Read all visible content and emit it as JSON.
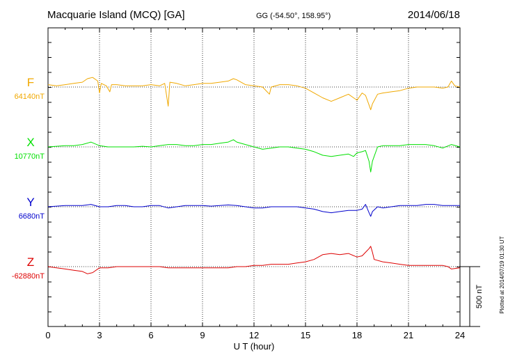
{
  "header": {
    "station": "Macquarie Island (MCQ)  [GA]",
    "coords": "GG (-54.50°, 158.95°)",
    "date": "2014/06/18"
  },
  "footer": {
    "plotted": "Plotted at 2014/07/19 01:30 UT"
  },
  "colors": {
    "F": "#f0a800",
    "X": "#00e000",
    "Y": "#0000cc",
    "Z": "#dd0000"
  },
  "chart_data": {
    "type": "line",
    "title": "Macquarie Island (MCQ)  [GA]",
    "xlabel": "U T (hour)",
    "ylabel": "",
    "xlim": [
      0,
      24
    ],
    "x_ticks": [
      "0",
      "3",
      "6",
      "9",
      "12",
      "15",
      "18",
      "21",
      "24"
    ],
    "grid": true,
    "scale_bar": {
      "label": "500 nT",
      "value_nT": 500
    },
    "series": [
      {
        "name": "F",
        "baseline_label": "64140nT",
        "baseline_nT": 64140,
        "points": [
          [
            0,
            64160
          ],
          [
            0.5,
            64150
          ],
          [
            1,
            64160
          ],
          [
            1.5,
            64170
          ],
          [
            2,
            64180
          ],
          [
            2.3,
            64210
          ],
          [
            2.6,
            64220
          ],
          [
            2.9,
            64190
          ],
          [
            3,
            64090
          ],
          [
            3.1,
            64170
          ],
          [
            3.4,
            64150
          ],
          [
            3.6,
            64100
          ],
          [
            3.7,
            64160
          ],
          [
            4,
            64160
          ],
          [
            4.5,
            64150
          ],
          [
            5,
            64150
          ],
          [
            5.5,
            64150
          ],
          [
            6,
            64160
          ],
          [
            6.5,
            64150
          ],
          [
            6.8,
            64170
          ],
          [
            7,
            63980
          ],
          [
            7.1,
            64180
          ],
          [
            7.5,
            64170
          ],
          [
            8,
            64150
          ],
          [
            8.5,
            64160
          ],
          [
            9,
            64170
          ],
          [
            9.5,
            64170
          ],
          [
            10,
            64180
          ],
          [
            10.5,
            64190
          ],
          [
            10.8,
            64210
          ],
          [
            11,
            64200
          ],
          [
            11.5,
            64160
          ],
          [
            12,
            64150
          ],
          [
            12.5,
            64140
          ],
          [
            12.9,
            64080
          ],
          [
            13,
            64140
          ],
          [
            13.5,
            64160
          ],
          [
            14,
            64160
          ],
          [
            14.5,
            64150
          ],
          [
            15,
            64130
          ],
          [
            15.5,
            64090
          ],
          [
            16,
            64050
          ],
          [
            16.5,
            64020
          ],
          [
            17,
            64050
          ],
          [
            17.5,
            64080
          ],
          [
            17.8,
            64050
          ],
          [
            18,
            64030
          ],
          [
            18.3,
            64090
          ],
          [
            18.5,
            64070
          ],
          [
            18.7,
            63990
          ],
          [
            18.8,
            63950
          ],
          [
            18.9,
            64000
          ],
          [
            19.2,
            64080
          ],
          [
            19.5,
            64090
          ],
          [
            20,
            64100
          ],
          [
            20.5,
            64110
          ],
          [
            21,
            64130
          ],
          [
            21.5,
            64140
          ],
          [
            22,
            64140
          ],
          [
            22.5,
            64140
          ],
          [
            23,
            64130
          ],
          [
            23.3,
            64140
          ],
          [
            23.5,
            64190
          ],
          [
            23.7,
            64150
          ],
          [
            24,
            64140
          ]
        ]
      },
      {
        "name": "X",
        "baseline_label": "10770nT",
        "baseline_nT": 10770,
        "points": [
          [
            0,
            10770
          ],
          [
            1,
            10780
          ],
          [
            1.5,
            10780
          ],
          [
            2,
            10790
          ],
          [
            2.5,
            10810
          ],
          [
            3,
            10780
          ],
          [
            3.5,
            10770
          ],
          [
            4,
            10770
          ],
          [
            4.5,
            10770
          ],
          [
            5,
            10770
          ],
          [
            5.5,
            10775
          ],
          [
            6,
            10770
          ],
          [
            6.5,
            10780
          ],
          [
            7,
            10790
          ],
          [
            7.5,
            10790
          ],
          [
            8,
            10780
          ],
          [
            8.5,
            10780
          ],
          [
            9,
            10790
          ],
          [
            9.5,
            10790
          ],
          [
            10,
            10800
          ],
          [
            10.5,
            10810
          ],
          [
            10.8,
            10830
          ],
          [
            11,
            10810
          ],
          [
            11.5,
            10790
          ],
          [
            12,
            10770
          ],
          [
            12.5,
            10750
          ],
          [
            13,
            10760
          ],
          [
            13.5,
            10770
          ],
          [
            14,
            10770
          ],
          [
            14.5,
            10760
          ],
          [
            15,
            10750
          ],
          [
            15.5,
            10730
          ],
          [
            16,
            10700
          ],
          [
            16.5,
            10690
          ],
          [
            17,
            10700
          ],
          [
            17.5,
            10710
          ],
          [
            17.8,
            10690
          ],
          [
            18,
            10720
          ],
          [
            18.3,
            10730
          ],
          [
            18.5,
            10740
          ],
          [
            18.7,
            10650
          ],
          [
            18.8,
            10560
          ],
          [
            18.9,
            10650
          ],
          [
            19.2,
            10770
          ],
          [
            19.5,
            10780
          ],
          [
            20,
            10780
          ],
          [
            20.5,
            10780
          ],
          [
            21,
            10790
          ],
          [
            21.5,
            10790
          ],
          [
            22,
            10790
          ],
          [
            22.5,
            10780
          ],
          [
            23,
            10760
          ],
          [
            23.5,
            10790
          ],
          [
            24,
            10770
          ]
        ]
      },
      {
        "name": "Y",
        "baseline_label": "6680nT",
        "baseline_nT": 6680,
        "points": [
          [
            0,
            6680
          ],
          [
            1,
            6690
          ],
          [
            2,
            6690
          ],
          [
            2.5,
            6700
          ],
          [
            3,
            6680
          ],
          [
            3.5,
            6680
          ],
          [
            4,
            6690
          ],
          [
            4.5,
            6690
          ],
          [
            5,
            6680
          ],
          [
            5.5,
            6680
          ],
          [
            6,
            6690
          ],
          [
            6.5,
            6690
          ],
          [
            7,
            6670
          ],
          [
            7.5,
            6680
          ],
          [
            8,
            6690
          ],
          [
            8.5,
            6690
          ],
          [
            9,
            6690
          ],
          [
            9.5,
            6685
          ],
          [
            10,
            6690
          ],
          [
            10.5,
            6695
          ],
          [
            11,
            6690
          ],
          [
            11.5,
            6680
          ],
          [
            12,
            6670
          ],
          [
            12.5,
            6670
          ],
          [
            13,
            6680
          ],
          [
            13.5,
            6680
          ],
          [
            14,
            6680
          ],
          [
            14.5,
            6680
          ],
          [
            15,
            6670
          ],
          [
            15.5,
            6660
          ],
          [
            16,
            6640
          ],
          [
            16.5,
            6630
          ],
          [
            17,
            6640
          ],
          [
            17.5,
            6650
          ],
          [
            18,
            6650
          ],
          [
            18.3,
            6660
          ],
          [
            18.5,
            6700
          ],
          [
            18.7,
            6630
          ],
          [
            18.8,
            6600
          ],
          [
            18.9,
            6640
          ],
          [
            19.2,
            6680
          ],
          [
            19.5,
            6670
          ],
          [
            20,
            6680
          ],
          [
            20.5,
            6690
          ],
          [
            21,
            6690
          ],
          [
            21.5,
            6690
          ],
          [
            22,
            6700
          ],
          [
            22.5,
            6700
          ],
          [
            23,
            6690
          ],
          [
            23.5,
            6690
          ],
          [
            24,
            6690
          ]
        ]
      },
      {
        "name": "Z",
        "baseline_label": "-62880nT",
        "baseline_nT": -62880,
        "points": [
          [
            0,
            -62880
          ],
          [
            0.5,
            -62890
          ],
          [
            1,
            -62900
          ],
          [
            1.5,
            -62910
          ],
          [
            2,
            -62920
          ],
          [
            2.3,
            -62940
          ],
          [
            2.6,
            -62930
          ],
          [
            3,
            -62890
          ],
          [
            3.5,
            -62890
          ],
          [
            4,
            -62880
          ],
          [
            4.5,
            -62880
          ],
          [
            5,
            -62880
          ],
          [
            5.5,
            -62880
          ],
          [
            6,
            -62880
          ],
          [
            6.5,
            -62880
          ],
          [
            7,
            -62890
          ],
          [
            7.5,
            -62890
          ],
          [
            8,
            -62890
          ],
          [
            8.5,
            -62890
          ],
          [
            9,
            -62890
          ],
          [
            9.5,
            -62890
          ],
          [
            10,
            -62890
          ],
          [
            10.5,
            -62890
          ],
          [
            11,
            -62880
          ],
          [
            11.5,
            -62880
          ],
          [
            12,
            -62870
          ],
          [
            12.5,
            -62870
          ],
          [
            13,
            -62860
          ],
          [
            13.5,
            -62860
          ],
          [
            14,
            -62860
          ],
          [
            14.5,
            -62850
          ],
          [
            15,
            -62840
          ],
          [
            15.5,
            -62820
          ],
          [
            16,
            -62780
          ],
          [
            16.5,
            -62770
          ],
          [
            17,
            -62780
          ],
          [
            17.5,
            -62770
          ],
          [
            18,
            -62800
          ],
          [
            18.3,
            -62790
          ],
          [
            18.5,
            -62760
          ],
          [
            18.7,
            -62730
          ],
          [
            18.8,
            -62710
          ],
          [
            18.9,
            -62760
          ],
          [
            19,
            -62820
          ],
          [
            19.5,
            -62840
          ],
          [
            20,
            -62850
          ],
          [
            20.5,
            -62860
          ],
          [
            21,
            -62870
          ],
          [
            21.5,
            -62870
          ],
          [
            22,
            -62870
          ],
          [
            22.5,
            -62870
          ],
          [
            23,
            -62870
          ],
          [
            23.3,
            -62880
          ],
          [
            23.5,
            -62900
          ],
          [
            24,
            -62890
          ]
        ]
      }
    ]
  }
}
